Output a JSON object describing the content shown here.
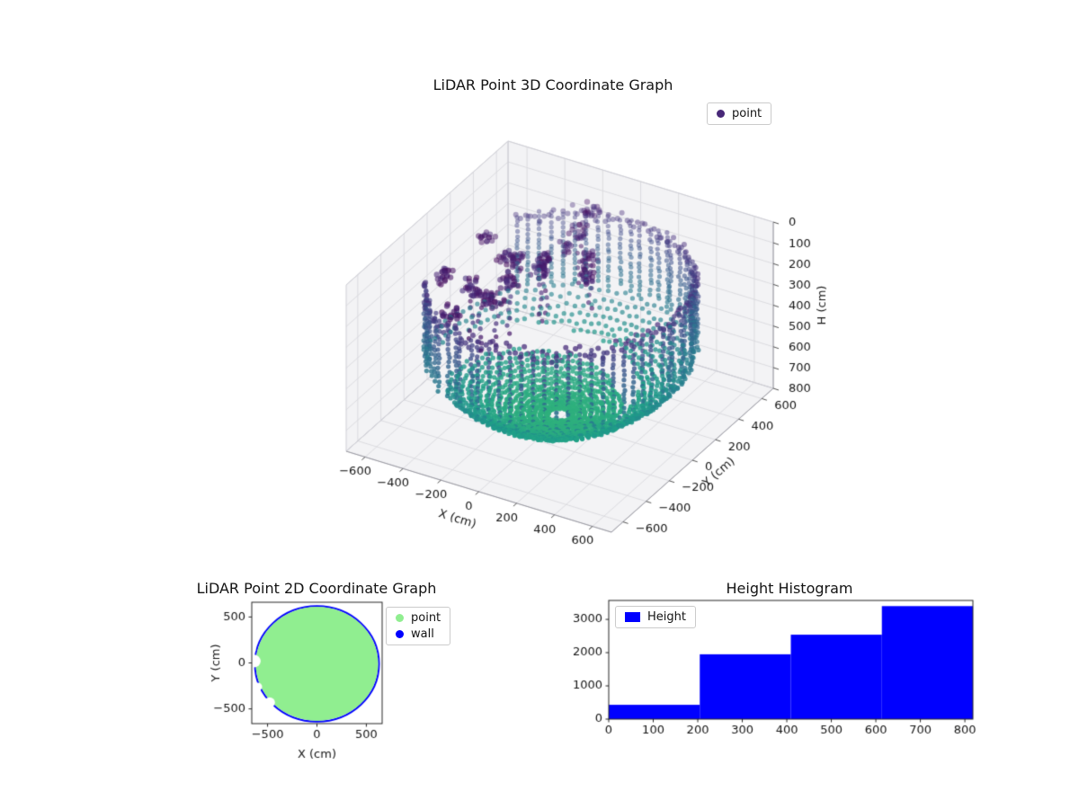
{
  "figure": {
    "background": "#ffffff"
  },
  "chart_data": [
    {
      "id": "lidar-3d",
      "type": "scatter",
      "projection": "3d",
      "title": "LiDAR Point 3D Coordinate Graph",
      "xlabel": "X (cm)",
      "ylabel": "Y (cm)",
      "zlabel": "H (cm)",
      "xlim": [
        -700,
        700
      ],
      "ylim": [
        -700,
        700
      ],
      "zlim": [
        0,
        800
      ],
      "zaxis_inverted": true,
      "xticks": [
        -600,
        -400,
        -200,
        0,
        200,
        400,
        600
      ],
      "yticks": [
        -600,
        -400,
        -200,
        0,
        200,
        400,
        600
      ],
      "zticks": [
        0,
        100,
        200,
        300,
        400,
        500,
        600,
        700,
        800
      ],
      "grid": true,
      "colormap": "viridis",
      "legend": [
        {
          "label": "point",
          "color": "#482878",
          "marker": "dot"
        }
      ],
      "point_cloud": {
        "seed": 7,
        "description": "LiDAR room scan: spherical-cap floor dome with cylindrical wall ring, scan shadow on left with floating obstacle clusters",
        "sphere_radius": 780,
        "wall": {
          "radius": 612,
          "theta_step_deg": 5,
          "h_top": 130,
          "h_step": 22,
          "gap_deg": [
            140,
            210
          ]
        },
        "rim": {
          "theta_step_deg": 2,
          "h_range": [
            110,
            185
          ]
        },
        "dome": {
          "r_min": 60,
          "r_max": 600,
          "r_step": 27,
          "theta_step_deg": 4,
          "gap_deg": [
            148,
            218
          ],
          "gap_r_min": 300
        },
        "clusters": {
          "count": 16,
          "theta_deg": [
            100,
            235
          ],
          "r": [
            280,
            590
          ],
          "h": [
            90,
            400
          ],
          "points": [
            10,
            26
          ],
          "spread_xy": 70,
          "spread_h": 60
        },
        "color_t_offset": 0.06,
        "color_t_scale": 1350
      }
    },
    {
      "id": "lidar-2d",
      "type": "scatter",
      "title": "LiDAR Point 2D Coordinate Graph",
      "xlabel": "X (cm)",
      "ylabel": "Y (cm)",
      "xlim": [
        -660,
        660
      ],
      "ylim": [
        -660,
        660
      ],
      "xticks": [
        -500,
        0,
        500
      ],
      "yticks": [
        -500,
        0,
        500
      ],
      "legend": [
        {
          "label": "point",
          "color": "#90ee90",
          "marker": "dot"
        },
        {
          "label": "wall",
          "color": "#0000ff",
          "marker": "dot"
        }
      ],
      "series": [
        {
          "name": "point",
          "shape": "disk",
          "center": [
            0,
            -10
          ],
          "radius": 620,
          "color": "#90ee90",
          "holes": [
            {
              "center": [
                -640,
                20
              ],
              "radius": 70
            },
            {
              "center": [
                -600,
                -260
              ],
              "radius": 45
            },
            {
              "center": [
                -480,
                -430
              ],
              "radius": 55
            },
            {
              "center": [
                -660,
                140
              ],
              "radius": 40
            }
          ]
        },
        {
          "name": "wall",
          "shape": "ring",
          "center": [
            0,
            -10
          ],
          "radius": 628,
          "color": "#0000ff"
        }
      ]
    },
    {
      "id": "height-histogram",
      "type": "bar",
      "title": "Height Histogram",
      "bin_edges": [
        0,
        204.5,
        409,
        613.5,
        818
      ],
      "values": [
        430,
        1950,
        2540,
        3400
      ],
      "xticks": [
        0,
        100,
        200,
        300,
        400,
        500,
        600,
        700,
        800
      ],
      "yticks": [
        0,
        1000,
        2000,
        3000
      ],
      "xlim": [
        0,
        818
      ],
      "ylim": [
        0,
        3570
      ],
      "color": "#0000ff",
      "legend": [
        {
          "label": "Height",
          "color": "#0000ff",
          "marker": "rect"
        }
      ]
    }
  ]
}
